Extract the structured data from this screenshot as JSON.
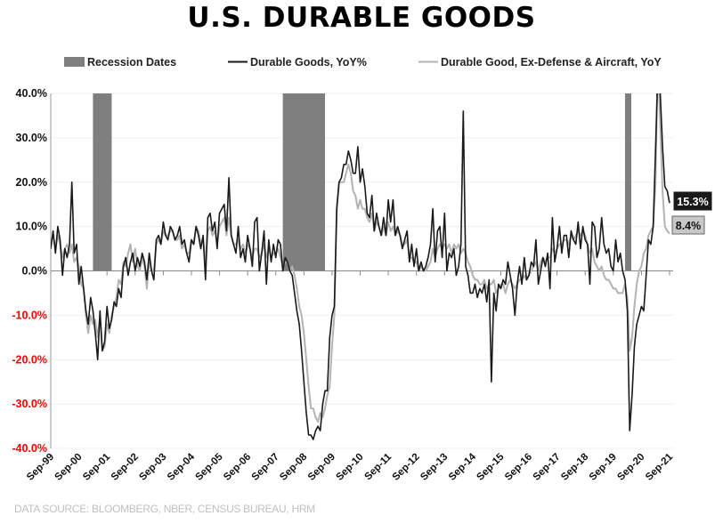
{
  "title": "U.S. DURABLE GOODS",
  "source": "DATA SOURCE: BLOOMBERG, NBER, CENSUS BUREAU, HRM",
  "chart_data": {
    "type": "line",
    "title": "U.S. DURABLE GOODS",
    "start_month": "Sep-99",
    "frequency": "monthly",
    "ylim": [
      -40,
      40
    ],
    "yticks": [
      "40.0%",
      "30.0%",
      "20.0%",
      "10.0%",
      "0.0%",
      "-10.0%",
      "-20.0%",
      "-30.0%",
      "-40.0%"
    ],
    "ytick_values": [
      40,
      30,
      20,
      10,
      0,
      -10,
      -20,
      -30,
      -40
    ],
    "negative_tick_color": "#ff0000",
    "xticks": [
      "Sep-99",
      "Sep-00",
      "Sep-01",
      "Sep-02",
      "Sep-03",
      "Sep-04",
      "Sep-05",
      "Sep-06",
      "Sep-07",
      "Sep-08",
      "Sep-09",
      "Sep-10",
      "Sep-11",
      "Sep-12",
      "Sep-13",
      "Sep-14",
      "Sep-15",
      "Sep-16",
      "Sep-17",
      "Sep-18",
      "Sep-19",
      "Sep-20",
      "Sep-21"
    ],
    "grid": true,
    "legend_placement": "top",
    "recessions": {
      "name": "Recession Dates",
      "color": "#7f7f7f",
      "periods": [
        [
          "Mar-01",
          "Nov-01"
        ],
        [
          "Dec-07",
          "Jun-09"
        ],
        [
          "Feb-20",
          "Apr-20"
        ]
      ]
    },
    "series": [
      {
        "name": "Durable Goods, YoY%",
        "color": "#1a1a1a",
        "last_label": "15.3%",
        "values": [
          5,
          9,
          4,
          10,
          7,
          -1,
          5,
          3,
          6,
          20,
          4,
          6,
          -3,
          1,
          -4,
          -9,
          -12,
          -6,
          -9,
          -14,
          -20,
          -9,
          -18,
          -16,
          -8,
          -13,
          -11,
          -7,
          -8,
          -4,
          -6,
          1,
          3,
          -1,
          2,
          4,
          0,
          3,
          1,
          4,
          2,
          -2,
          4,
          0,
          -2,
          7,
          8,
          6,
          11,
          8,
          7,
          10,
          9,
          7,
          8,
          10,
          6,
          7,
          4,
          2,
          7,
          6,
          10,
          8,
          5,
          8,
          -2,
          12,
          13,
          9,
          11,
          5,
          13,
          14,
          15,
          9,
          21,
          8,
          6,
          4,
          10,
          3,
          5,
          2,
          8,
          5,
          1,
          11,
          12,
          0,
          4,
          9,
          -3,
          7,
          2,
          6,
          3,
          7,
          6,
          0,
          3,
          2,
          0,
          -1,
          -5,
          -9,
          -12,
          -18,
          -25,
          -32,
          -37,
          -37,
          -38,
          -36,
          -35,
          -36,
          -30,
          -27,
          -27,
          -15,
          -10,
          -8,
          14,
          20,
          21,
          24,
          24,
          27,
          25,
          22,
          22,
          28,
          20,
          23,
          19,
          13,
          12,
          17,
          9,
          13,
          10,
          8,
          12,
          8,
          16,
          11,
          16,
          8,
          10,
          8,
          5,
          7,
          9,
          2,
          6,
          1,
          5,
          0,
          2,
          0,
          1,
          3,
          6,
          14,
          2,
          9,
          10,
          3,
          13,
          0,
          4,
          3,
          5,
          -1,
          1,
          6,
          36,
          1,
          -1,
          -5,
          -5,
          -3,
          -6,
          -4,
          -5,
          -3,
          -7,
          -2,
          -25,
          -5,
          -9,
          -3,
          -4,
          -2,
          -3,
          2,
          -1,
          -4,
          -10,
          -3,
          1,
          -3,
          3,
          -2,
          -1,
          2,
          1,
          7,
          -3,
          0,
          3,
          1,
          4,
          -4,
          12,
          2,
          5,
          10,
          4,
          8,
          8,
          3,
          9,
          7,
          6,
          11,
          5,
          10,
          7,
          6,
          -3,
          11,
          10,
          3,
          5,
          12,
          6,
          4,
          5,
          1,
          0,
          7,
          2,
          4,
          0,
          -2,
          -9,
          -36,
          -28,
          -17,
          -12,
          -10,
          -8,
          -9,
          -1,
          7,
          6,
          10,
          27,
          45,
          40,
          28,
          19,
          18,
          15.3
        ]
      },
      {
        "name": "Durable Good, Ex-Defense & Aircraft, YoY",
        "color": "#b3b3b3",
        "last_label": "8.4%",
        "values": [
          6,
          8,
          5,
          8,
          6,
          3,
          5,
          6,
          4,
          6,
          2,
          3,
          1,
          -3,
          -4,
          -10,
          -14,
          -10,
          -12,
          -11,
          -15,
          -10,
          -18,
          -17,
          -12,
          -14,
          -10,
          -8,
          -6,
          -2,
          -3,
          2,
          1,
          4,
          6,
          2,
          5,
          1,
          0,
          3,
          1,
          -4,
          2,
          0,
          0,
          6,
          7,
          6,
          9,
          8,
          8,
          9,
          9,
          7,
          7,
          8,
          5,
          6,
          4,
          4,
          7,
          6,
          10,
          9,
          6,
          7,
          2,
          9,
          10,
          8,
          9,
          6,
          10,
          11,
          12,
          8,
          12,
          8,
          6,
          6,
          7,
          5,
          6,
          4,
          6,
          5,
          3,
          5,
          5,
          3,
          4,
          6,
          3,
          5,
          3,
          4,
          4,
          5,
          3,
          1,
          2,
          2,
          0,
          1,
          -1,
          -4,
          -8,
          -10,
          -14,
          -20,
          -26,
          -31,
          -31,
          -33,
          -34,
          -32,
          -33,
          -31,
          -28,
          -26,
          -17,
          -10,
          14,
          20,
          20,
          20,
          22,
          24,
          22,
          18,
          17,
          14,
          16,
          14,
          14,
          12,
          11,
          13,
          9,
          11,
          10,
          8,
          10,
          8,
          11,
          9,
          10,
          8,
          9,
          8,
          6,
          6,
          7,
          3,
          3,
          2,
          2,
          0,
          1,
          0,
          0,
          1,
          2,
          5,
          3,
          5,
          6,
          5,
          6,
          5,
          6,
          4,
          6,
          5,
          6,
          4,
          5,
          4,
          2,
          1,
          -1,
          -2,
          -2,
          -3,
          -3,
          -2,
          -4,
          -3,
          -3,
          -2,
          -5,
          -4,
          -3,
          -3,
          -5,
          -3,
          -2,
          -3,
          -4,
          -3,
          -2,
          -2,
          -1,
          -2,
          -1,
          0,
          1,
          2,
          0,
          2,
          3,
          2,
          3,
          3,
          5,
          4,
          5,
          6,
          6,
          7,
          7,
          6,
          8,
          7,
          8,
          9,
          8,
          9,
          8,
          6,
          4,
          5,
          2,
          1,
          0,
          1,
          -1,
          -2,
          -2,
          -3,
          -4,
          -4,
          -5,
          -5,
          -5,
          -3,
          -6,
          -18,
          -15,
          -8,
          -3,
          0,
          1,
          4,
          5,
          8,
          9,
          10,
          20,
          48,
          33,
          18,
          10,
          9,
          8.4
        ]
      }
    ]
  }
}
